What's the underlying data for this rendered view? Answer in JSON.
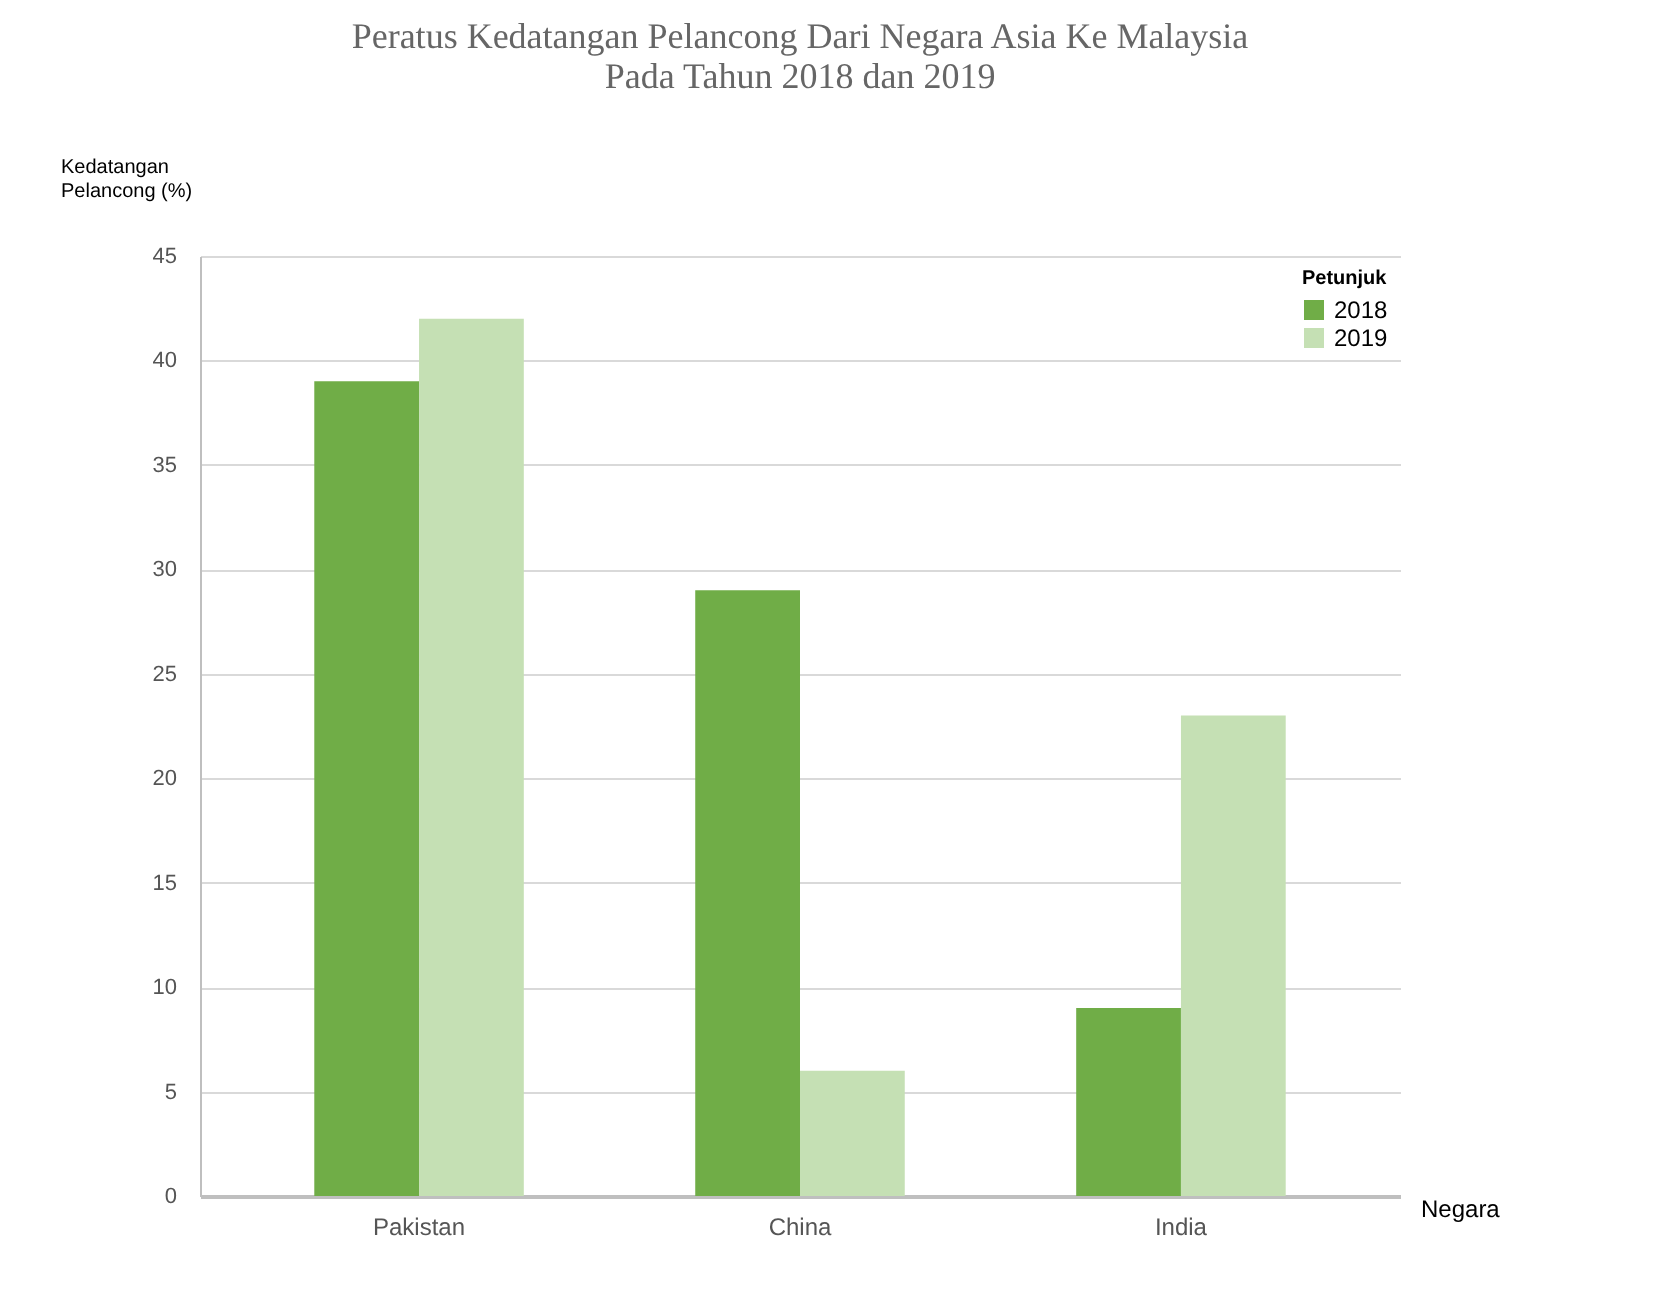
{
  "chart_data": {
    "type": "bar",
    "title": "Peratus Kedatangan Pelancong Dari Negara Asia Ke Malaysia\nPada Tahun 2018 dan 2019",
    "xlabel": "Negara",
    "ylabel": "Kedatangan\nPelancong (%)",
    "legend_title": "Petunjuk",
    "categories": [
      "Pakistan",
      "China",
      "India"
    ],
    "series": [
      {
        "name": "2018",
        "color": "#70ad47",
        "values": [
          39,
          29,
          9
        ]
      },
      {
        "name": "2019",
        "color": "#c5e0b4",
        "values": [
          42,
          6,
          23
        ]
      }
    ],
    "ylim": [
      0,
      45
    ],
    "yticks": [
      0,
      5,
      10,
      15,
      20,
      25,
      30,
      35,
      40,
      45
    ],
    "grid": "y",
    "legend": "top right"
  }
}
